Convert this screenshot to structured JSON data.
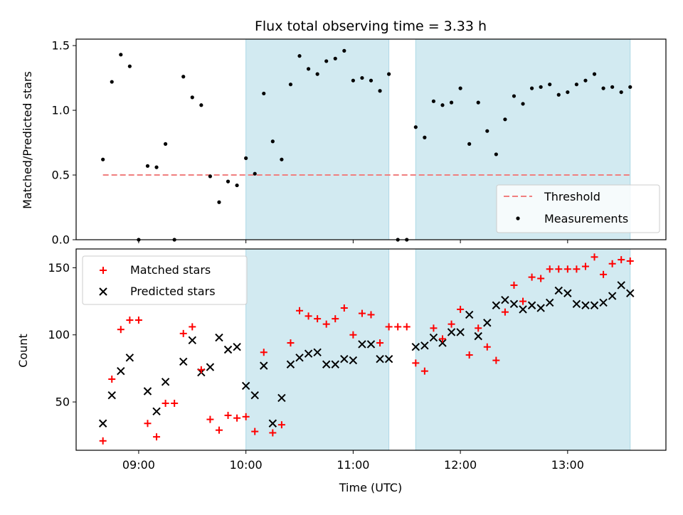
{
  "chart_data": {
    "title": "Flux total observing time = 3.33 h",
    "colors": {
      "shade": "#add8e6",
      "threshold": "#f07f7f",
      "measurement": "#000000",
      "matched": "#ff0000",
      "predicted": "#000000"
    },
    "shaded_intervals": [
      [
        "10:00",
        "11:20"
      ],
      [
        "11:35",
        "13:35"
      ]
    ],
    "time_ticks": [
      "09:00",
      "10:00",
      "11:00",
      "12:00",
      "13:00"
    ],
    "xlim": [
      "08:25",
      "13:55"
    ],
    "xlabel": "Time (UTC)",
    "charts": [
      {
        "type": "scatter",
        "ylabel": "Matched/Predicted stars",
        "ylim": [
          0,
          1.55
        ],
        "yticks": [
          0.0,
          0.5,
          1.0,
          1.5
        ],
        "ytick_labels": [
          "0.0",
          "0.5",
          "1.0",
          "1.5"
        ],
        "threshold": {
          "value": 0.5,
          "x_range": [
            "08:40",
            "13:35"
          ]
        },
        "legend": {
          "position": "lower-right",
          "threshold_label": "Threshold",
          "measurements_label": "Measurements"
        },
        "series": [
          {
            "name": "Measurements",
            "points": [
              [
                "08:40",
                0.62
              ],
              [
                "08:45",
                1.22
              ],
              [
                "08:50",
                1.43
              ],
              [
                "08:55",
                1.34
              ],
              [
                "09:00",
                0.0
              ],
              [
                "09:05",
                0.57
              ],
              [
                "09:10",
                0.56
              ],
              [
                "09:15",
                0.74
              ],
              [
                "09:20",
                0.0
              ],
              [
                "09:25",
                1.26
              ],
              [
                "09:30",
                1.1
              ],
              [
                "09:35",
                1.04
              ],
              [
                "09:40",
                0.49
              ],
              [
                "09:45",
                0.29
              ],
              [
                "09:50",
                0.45
              ],
              [
                "09:55",
                0.42
              ],
              [
                "10:00",
                0.63
              ],
              [
                "10:05",
                0.51
              ],
              [
                "10:10",
                1.13
              ],
              [
                "10:15",
                0.76
              ],
              [
                "10:20",
                0.62
              ],
              [
                "10:25",
                1.2
              ],
              [
                "10:30",
                1.42
              ],
              [
                "10:35",
                1.32
              ],
              [
                "10:40",
                1.28
              ],
              [
                "10:45",
                1.38
              ],
              [
                "10:50",
                1.4
              ],
              [
                "10:55",
                1.46
              ],
              [
                "11:00",
                1.23
              ],
              [
                "11:05",
                1.25
              ],
              [
                "11:10",
                1.23
              ],
              [
                "11:15",
                1.15
              ],
              [
                "11:20",
                1.28
              ],
              [
                "11:25",
                0.0
              ],
              [
                "11:30",
                0.0
              ],
              [
                "11:35",
                0.87
              ],
              [
                "11:40",
                0.79
              ],
              [
                "11:45",
                1.07
              ],
              [
                "11:50",
                1.04
              ],
              [
                "11:55",
                1.06
              ],
              [
                "12:00",
                1.17
              ],
              [
                "12:05",
                0.74
              ],
              [
                "12:10",
                1.06
              ],
              [
                "12:15",
                0.84
              ],
              [
                "12:20",
                0.66
              ],
              [
                "12:25",
                0.93
              ],
              [
                "12:30",
                1.11
              ],
              [
                "12:35",
                1.05
              ],
              [
                "12:40",
                1.17
              ],
              [
                "12:45",
                1.18
              ],
              [
                "12:50",
                1.2
              ],
              [
                "12:55",
                1.12
              ],
              [
                "13:00",
                1.14
              ],
              [
                "13:05",
                1.2
              ],
              [
                "13:10",
                1.23
              ],
              [
                "13:15",
                1.28
              ],
              [
                "13:20",
                1.17
              ],
              [
                "13:25",
                1.18
              ],
              [
                "13:30",
                1.14
              ],
              [
                "13:35",
                1.18
              ]
            ]
          }
        ]
      },
      {
        "type": "scatter",
        "ylabel": "Count",
        "ylim": [
          14,
          164
        ],
        "yticks": [
          50,
          100,
          150
        ],
        "ytick_labels": [
          "50",
          "100",
          "150"
        ],
        "legend": {
          "position": "top-left",
          "matched_label": "Matched stars",
          "predicted_label": "Predicted stars"
        },
        "series": [
          {
            "name": "Matched stars",
            "points": [
              [
                "08:40",
                21
              ],
              [
                "08:45",
                67
              ],
              [
                "08:50",
                104
              ],
              [
                "08:55",
                111
              ],
              [
                "09:00",
                111
              ],
              [
                "09:05",
                34
              ],
              [
                "09:10",
                24
              ],
              [
                "09:15",
                49
              ],
              [
                "09:20",
                49
              ],
              [
                "09:25",
                101
              ],
              [
                "09:30",
                106
              ],
              [
                "09:35",
                74
              ],
              [
                "09:40",
                37
              ],
              [
                "09:45",
                29
              ],
              [
                "09:50",
                40
              ],
              [
                "09:55",
                38
              ],
              [
                "10:00",
                39
              ],
              [
                "10:05",
                28
              ],
              [
                "10:10",
                87
              ],
              [
                "10:15",
                27
              ],
              [
                "10:20",
                33
              ],
              [
                "10:25",
                94
              ],
              [
                "10:30",
                118
              ],
              [
                "10:35",
                114
              ],
              [
                "10:40",
                112
              ],
              [
                "10:45",
                108
              ],
              [
                "10:50",
                112
              ],
              [
                "10:55",
                120
              ],
              [
                "11:00",
                100
              ],
              [
                "11:05",
                116
              ],
              [
                "11:10",
                115
              ],
              [
                "11:15",
                94
              ],
              [
                "11:20",
                106
              ],
              [
                "11:25",
                106
              ],
              [
                "11:30",
                106
              ],
              [
                "11:35",
                79
              ],
              [
                "11:40",
                73
              ],
              [
                "11:45",
                105
              ],
              [
                "11:50",
                97
              ],
              [
                "11:55",
                108
              ],
              [
                "12:00",
                119
              ],
              [
                "12:05",
                85
              ],
              [
                "12:10",
                105
              ],
              [
                "12:15",
                91
              ],
              [
                "12:20",
                81
              ],
              [
                "12:25",
                117
              ],
              [
                "12:30",
                137
              ],
              [
                "12:35",
                125
              ],
              [
                "12:40",
                143
              ],
              [
                "12:45",
                142
              ],
              [
                "12:50",
                149
              ],
              [
                "12:55",
                149
              ],
              [
                "13:00",
                149
              ],
              [
                "13:05",
                149
              ],
              [
                "13:10",
                151
              ],
              [
                "13:15",
                158
              ],
              [
                "13:20",
                145
              ],
              [
                "13:25",
                153
              ],
              [
                "13:30",
                156
              ],
              [
                "13:35",
                155
              ]
            ]
          },
          {
            "name": "Predicted stars",
            "points": [
              [
                "08:40",
                34
              ],
              [
                "08:45",
                55
              ],
              [
                "08:50",
                73
              ],
              [
                "08:55",
                83
              ],
              [
                "09:05",
                58
              ],
              [
                "09:10",
                43
              ],
              [
                "09:15",
                65
              ],
              [
                "09:25",
                80
              ],
              [
                "09:30",
                96
              ],
              [
                "09:35",
                72
              ],
              [
                "09:40",
                76
              ],
              [
                "09:45",
                98
              ],
              [
                "09:50",
                89
              ],
              [
                "09:55",
                91
              ],
              [
                "10:00",
                62
              ],
              [
                "10:05",
                55
              ],
              [
                "10:10",
                77
              ],
              [
                "10:15",
                34
              ],
              [
                "10:20",
                53
              ],
              [
                "10:25",
                78
              ],
              [
                "10:30",
                83
              ],
              [
                "10:35",
                86
              ],
              [
                "10:40",
                87
              ],
              [
                "10:45",
                78
              ],
              [
                "10:50",
                78
              ],
              [
                "10:55",
                82
              ],
              [
                "11:00",
                81
              ],
              [
                "11:05",
                93
              ],
              [
                "11:10",
                93
              ],
              [
                "11:15",
                82
              ],
              [
                "11:20",
                82
              ],
              [
                "11:35",
                91
              ],
              [
                "11:40",
                92
              ],
              [
                "11:45",
                98
              ],
              [
                "11:50",
                94
              ],
              [
                "11:55",
                102
              ],
              [
                "12:00",
                102
              ],
              [
                "12:05",
                115
              ],
              [
                "12:10",
                99
              ],
              [
                "12:15",
                109
              ],
              [
                "12:20",
                122
              ],
              [
                "12:25",
                126
              ],
              [
                "12:30",
                123
              ],
              [
                "12:35",
                119
              ],
              [
                "12:40",
                122
              ],
              [
                "12:45",
                120
              ],
              [
                "12:50",
                124
              ],
              [
                "12:55",
                133
              ],
              [
                "13:00",
                131
              ],
              [
                "13:05",
                123
              ],
              [
                "13:10",
                122
              ],
              [
                "13:15",
                122
              ],
              [
                "13:20",
                124
              ],
              [
                "13:25",
                129
              ],
              [
                "13:30",
                137
              ],
              [
                "13:35",
                131
              ]
            ]
          }
        ]
      }
    ]
  }
}
